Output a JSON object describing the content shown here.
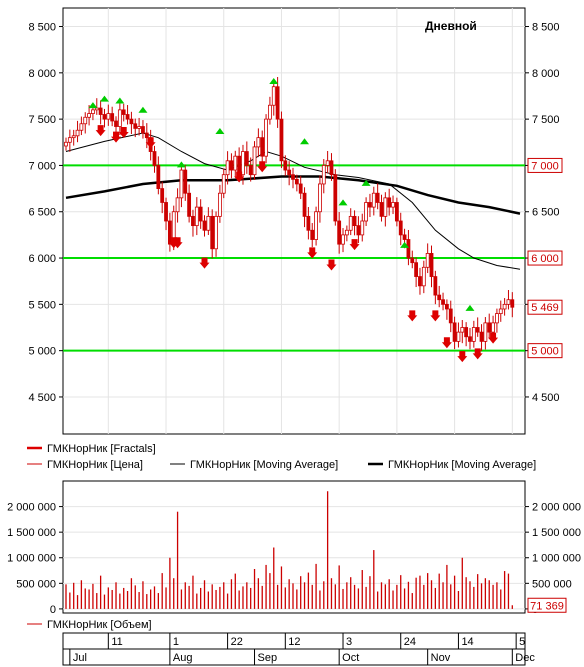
{
  "period_label": "Дневной",
  "colors": {
    "up_candle": "#cc0000",
    "level_line": "#00dd00",
    "fractal_up": "#00cc00",
    "fractal_down": "#dd0000",
    "ma_short": "#000000",
    "ma_long": "#000000",
    "volume": "#cc0000",
    "badge": "#cc0000"
  },
  "price_legend": [
    {
      "label": "ГМКНорНик [Fractals]",
      "color": "#dd0000",
      "style": "thick"
    },
    {
      "label": "ГМКНорНик [Цена]",
      "color": "#cc0000",
      "style": "thin"
    },
    {
      "label": "ГМКНорНик [Moving Average]",
      "color": "#000000",
      "style": "thin"
    },
    {
      "label": "ГМКНорНик [Moving Average]",
      "color": "#000000",
      "style": "thick"
    }
  ],
  "volume_legend": [
    {
      "label": "ГМКНорНик [Объем]",
      "color": "#cc0000",
      "style": "thin"
    }
  ],
  "date_axis": {
    "day_ticks": [
      {
        "label": "11",
        "x": 11
      },
      {
        "label": "1",
        "x": 27
      },
      {
        "label": "22",
        "x": 42
      },
      {
        "label": "12",
        "x": 57
      },
      {
        "label": "3",
        "x": 72
      },
      {
        "label": "24",
        "x": 87
      },
      {
        "label": "14",
        "x": 102
      },
      {
        "label": "5",
        "x": 117
      }
    ],
    "months": [
      {
        "label": "Jul",
        "x": 1
      },
      {
        "label": "Aug",
        "x": 27
      },
      {
        "label": "Sep",
        "x": 49
      },
      {
        "label": "Oct",
        "x": 71
      },
      {
        "label": "Nov",
        "x": 94
      },
      {
        "label": "Dec",
        "x": 116
      }
    ]
  },
  "chart_data": [
    {
      "type": "candlestick",
      "title": "Дневной",
      "x_range": [
        0,
        118
      ],
      "y_ticks": [
        4500,
        5000,
        5500,
        6000,
        6500,
        7000,
        7500,
        8000,
        8500
      ],
      "y_tick_labels": [
        "4 500",
        "5 000",
        "5 500",
        "6 000",
        "6 500",
        "7 000",
        "7 500",
        "8 000",
        "8 500"
      ],
      "ylim": [
        4100,
        8700
      ],
      "grid": true,
      "horizontal_levels": [
        {
          "value": 7000,
          "label": "7 000"
        },
        {
          "value": 6000,
          "label": "6 000"
        },
        {
          "value": 5000,
          "label": "5 000"
        }
      ],
      "last_price": {
        "value": 5469,
        "label": "5 469"
      },
      "price_series": [
        7250,
        7300,
        7320,
        7380,
        7450,
        7520,
        7560,
        7600,
        7620,
        7550,
        7500,
        7560,
        7480,
        7420,
        7600,
        7550,
        7500,
        7450,
        7400,
        7420,
        7350,
        7300,
        7150,
        7000,
        6750,
        6600,
        6400,
        6150,
        6500,
        6650,
        6950,
        6700,
        6450,
        6350,
        6550,
        6400,
        6300,
        6450,
        6100,
        6450,
        6700,
        6900,
        7050,
        6950,
        7100,
        6900,
        7150,
        7000,
        6900,
        7200,
        7300,
        7100,
        7500,
        7650,
        7850,
        7500,
        7050,
        6950,
        6900,
        6850,
        6800,
        6700,
        6450,
        6300,
        6200,
        6500,
        6800,
        7000,
        7050,
        6900,
        6400,
        6150,
        6250,
        6300,
        6450,
        6350,
        6250,
        6400,
        6600,
        6550,
        6700,
        6600,
        6450,
        6650,
        6550,
        6600,
        6400,
        6250,
        6200,
        6000,
        5950,
        5800,
        5700,
        5900,
        6050,
        5800,
        5600,
        5550,
        5500,
        5450,
        5300,
        5100,
        5200,
        5250,
        5150,
        5100,
        5250,
        5200,
        5100,
        5300,
        5200,
        5300,
        5400,
        5450,
        5500,
        5550,
        5469
      ],
      "moving_average_short": [
        [
          0,
          7150
        ],
        [
          10,
          7260
        ],
        [
          20,
          7350
        ],
        [
          24,
          7300
        ],
        [
          30,
          7150
        ],
        [
          36,
          7020
        ],
        [
          42,
          6950
        ],
        [
          48,
          7050
        ],
        [
          52,
          7150
        ],
        [
          56,
          7100
        ],
        [
          62,
          6980
        ],
        [
          70,
          6900
        ],
        [
          76,
          6870
        ],
        [
          84,
          6800
        ],
        [
          90,
          6600
        ],
        [
          96,
          6300
        ],
        [
          102,
          6100
        ],
        [
          106,
          6000
        ],
        [
          112,
          5920
        ],
        [
          118,
          5880
        ]
      ],
      "moving_average_long": [
        [
          0,
          6650
        ],
        [
          10,
          6720
        ],
        [
          20,
          6800
        ],
        [
          30,
          6840
        ],
        [
          42,
          6840
        ],
        [
          56,
          6880
        ],
        [
          66,
          6880
        ],
        [
          76,
          6840
        ],
        [
          86,
          6780
        ],
        [
          94,
          6680
        ],
        [
          102,
          6600
        ],
        [
          110,
          6550
        ],
        [
          118,
          6480
        ]
      ],
      "fractals_up": [
        [
          7,
          7630
        ],
        [
          10,
          7700
        ],
        [
          14,
          7680
        ],
        [
          20,
          7580
        ],
        [
          40,
          7350
        ],
        [
          30,
          6990
        ],
        [
          54,
          7890
        ],
        [
          62,
          7240
        ],
        [
          72,
          6580
        ],
        [
          78,
          6790
        ],
        [
          88,
          6120
        ],
        [
          105,
          5440
        ]
      ],
      "fractals_down": [
        [
          9,
          7370
        ],
        [
          13,
          7300
        ],
        [
          15,
          7350
        ],
        [
          22,
          7240
        ],
        [
          28,
          6160
        ],
        [
          29,
          6160
        ],
        [
          36,
          5940
        ],
        [
          45,
          6870
        ],
        [
          51,
          6980
        ],
        [
          64,
          6050
        ],
        [
          69,
          5920
        ],
        [
          75,
          6140
        ],
        [
          90,
          5370
        ],
        [
          96,
          5370
        ],
        [
          99,
          5080
        ],
        [
          103,
          4930
        ],
        [
          107,
          4960
        ],
        [
          111,
          5130
        ]
      ]
    },
    {
      "type": "bar",
      "title": "",
      "y_ticks": [
        0,
        500000,
        1000000,
        1500000,
        2000000
      ],
      "y_tick_labels": [
        "0",
        "500 000",
        "1 000 000",
        "1 500 000",
        "2 000 000"
      ],
      "ylim": [
        -80000,
        2500000
      ],
      "grid": true,
      "last_value": {
        "value": 71369,
        "label": "71 369"
      },
      "values": [
        480000,
        320000,
        510000,
        270000,
        560000,
        400000,
        380000,
        490000,
        310000,
        650000,
        280000,
        420000,
        370000,
        520000,
        300000,
        410000,
        350000,
        600000,
        460000,
        330000,
        540000,
        290000,
        380000,
        440000,
        310000,
        700000,
        420000,
        1000000,
        600000,
        1900000,
        380000,
        520000,
        450000,
        650000,
        300000,
        410000,
        560000,
        340000,
        480000,
        370000,
        430000,
        520000,
        300000,
        580000,
        690000,
        360000,
        440000,
        520000,
        410000,
        780000,
        600000,
        450000,
        860000,
        700000,
        1200000,
        470000,
        830000,
        420000,
        580000,
        500000,
        380000,
        640000,
        520000,
        710000,
        470000,
        880000,
        360000,
        540000,
        2300000,
        600000,
        480000,
        850000,
        390000,
        520000,
        620000,
        470000,
        400000,
        760000,
        430000,
        640000,
        1150000,
        340000,
        520000,
        480000,
        580000,
        360000,
        470000,
        660000,
        400000,
        530000,
        310000,
        610000,
        650000,
        470000,
        700000,
        560000,
        410000,
        690000,
        520000,
        860000,
        480000,
        650000,
        350000,
        1000000,
        620000,
        540000,
        430000,
        680000,
        500000,
        600000,
        560000,
        470000,
        520000,
        380000,
        740000,
        690000,
        71369
      ]
    }
  ]
}
